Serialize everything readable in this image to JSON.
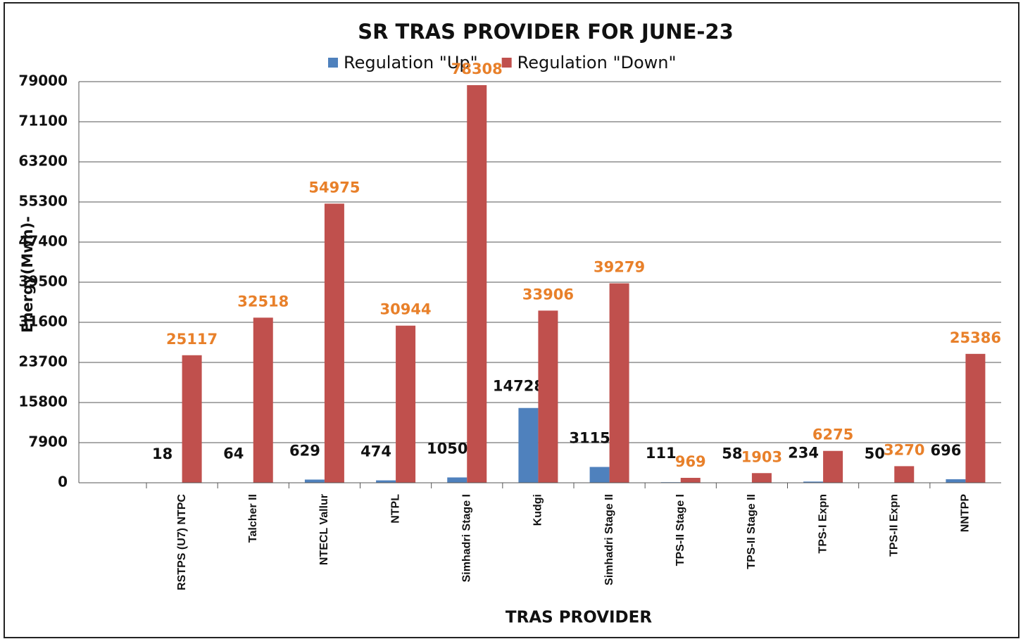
{
  "chart_data": {
    "type": "bar",
    "title": "SR TRAS PROVIDER FOR JUNE-23",
    "x_label": "TRAS PROVIDER",
    "y_label": "Energy(Mwh)-",
    "categories": [
      "RSTPS (U7) NTPC",
      "Talcher  II",
      "NTECL Vallur",
      "NTPL",
      "Simhadri Stage I",
      "Kudgi",
      "Simhadri Stage II",
      "TPS-II Stage I",
      "TPS-II Stage II",
      "TPS-I Expn",
      "TPS-II Expn",
      "NNTPP"
    ],
    "series": [
      {
        "name": "Regulation \"Up\"",
        "color": "#4f81bd",
        "label_color": "#111111",
        "values": [
          18,
          64,
          629,
          474,
          1050,
          14728,
          3115,
          111,
          58,
          234,
          50,
          696
        ]
      },
      {
        "name": "Regulation \"Down\"",
        "color": "#c0504d",
        "label_color": "#e8802a",
        "values": [
          25117,
          32518,
          54975,
          30944,
          78308,
          33906,
          39279,
          969,
          1903,
          6275,
          3270,
          25386
        ]
      }
    ],
    "ylim": [
      0,
      79000
    ],
    "yticks": [
      0,
      7900,
      15800,
      23700,
      31600,
      39500,
      47400,
      55300,
      63200,
      71100,
      79000
    ],
    "grid": true,
    "legend": "top"
  }
}
